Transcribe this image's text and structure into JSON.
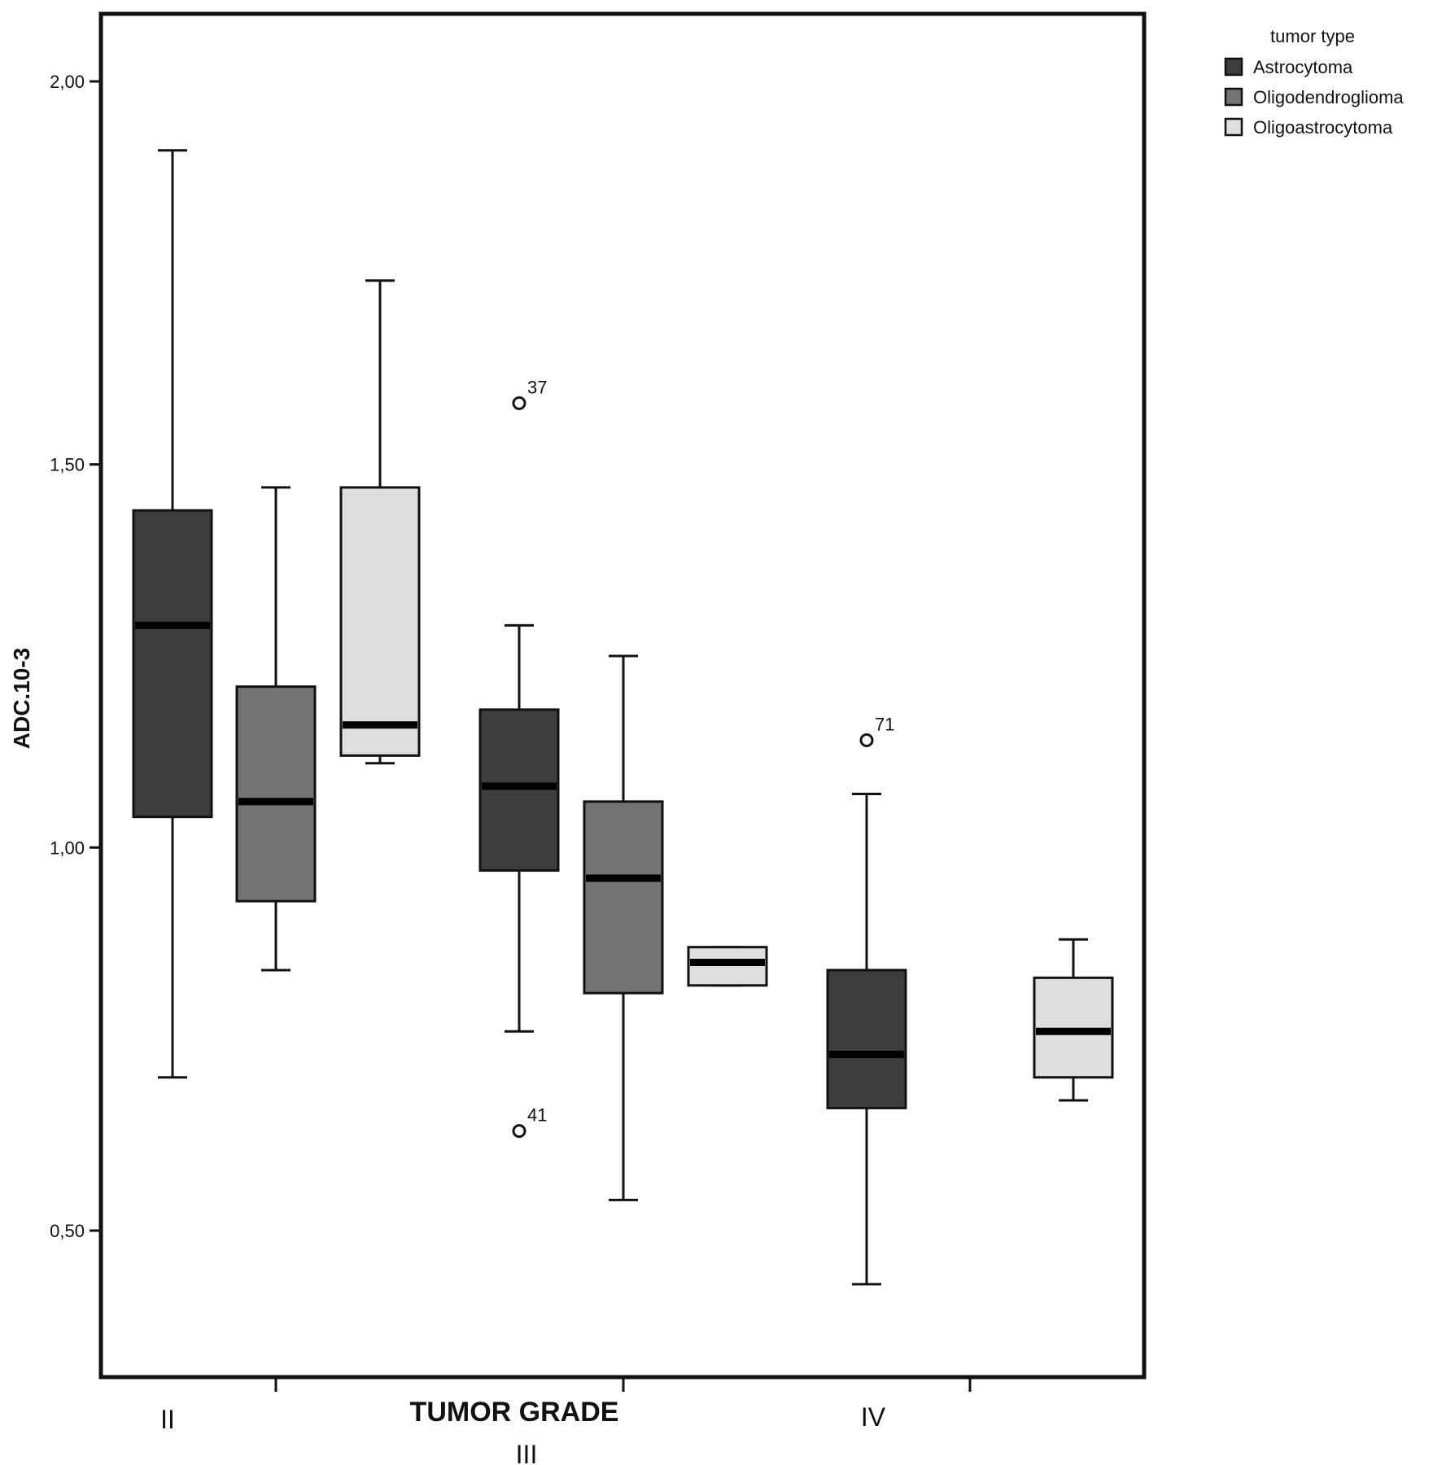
{
  "chart_data": {
    "type": "boxplot",
    "ylabel": "ADC.10-3",
    "xlabel": "TUMOR GRADE",
    "ylim": [
      0.32,
      2.09
    ],
    "yticks": [
      0.5,
      1.0,
      1.5,
      2.0
    ],
    "ytick_labels": [
      "0,50",
      "1,00",
      "1,50",
      "2,00"
    ],
    "categories": [
      "II",
      "III",
      "IV"
    ],
    "legend": {
      "title": "tumor type",
      "position": "top-right",
      "entries": [
        {
          "name": "Astrocytoma",
          "color": "#3d3d3d"
        },
        {
          "name": "Oligodendroglioma",
          "color": "#747474"
        },
        {
          "name": "Oligoastrocytoma",
          "color": "#dedede"
        }
      ]
    },
    "boxes": [
      {
        "category": "II",
        "series": "Astrocytoma",
        "whisker_low": 0.7,
        "q1": 1.04,
        "median": 1.29,
        "q3": 1.44,
        "whisker_high": 1.91
      },
      {
        "category": "II",
        "series": "Oligodendroglioma",
        "whisker_low": 0.84,
        "q1": 0.93,
        "median": 1.06,
        "q3": 1.21,
        "whisker_high": 1.47
      },
      {
        "category": "II",
        "series": "Oligoastrocytoma",
        "whisker_low": 1.11,
        "q1": 1.12,
        "median": 1.16,
        "q3": 1.47,
        "whisker_high": 1.74
      },
      {
        "category": "III",
        "series": "Astrocytoma",
        "whisker_low": 0.76,
        "q1": 0.97,
        "median": 1.08,
        "q3": 1.18,
        "whisker_high": 1.29
      },
      {
        "category": "III",
        "series": "Oligodendroglioma",
        "whisker_low": 0.54,
        "q1": 0.81,
        "median": 0.96,
        "q3": 1.06,
        "whisker_high": 1.25
      },
      {
        "category": "III",
        "series": "Oligoastrocytoma",
        "whisker_low": 0.82,
        "q1": 0.82,
        "median": 0.85,
        "q3": 0.87,
        "whisker_high": 0.87
      },
      {
        "category": "IV",
        "series": "Astrocytoma",
        "whisker_low": 0.43,
        "q1": 0.66,
        "median": 0.73,
        "q3": 0.84,
        "whisker_high": 1.07
      },
      {
        "category": "IV",
        "series": "Oligoastrocytoma",
        "whisker_low": 0.67,
        "q1": 0.7,
        "median": 0.76,
        "q3": 0.83,
        "whisker_high": 0.88
      }
    ],
    "outliers": [
      {
        "category": "III",
        "series": "Astrocytoma",
        "value": 1.58,
        "label": "37"
      },
      {
        "category": "III",
        "series": "Astrocytoma",
        "value": 0.63,
        "label": "41"
      },
      {
        "category": "IV",
        "series": "Astrocytoma",
        "value": 1.14,
        "label": "71"
      }
    ]
  }
}
